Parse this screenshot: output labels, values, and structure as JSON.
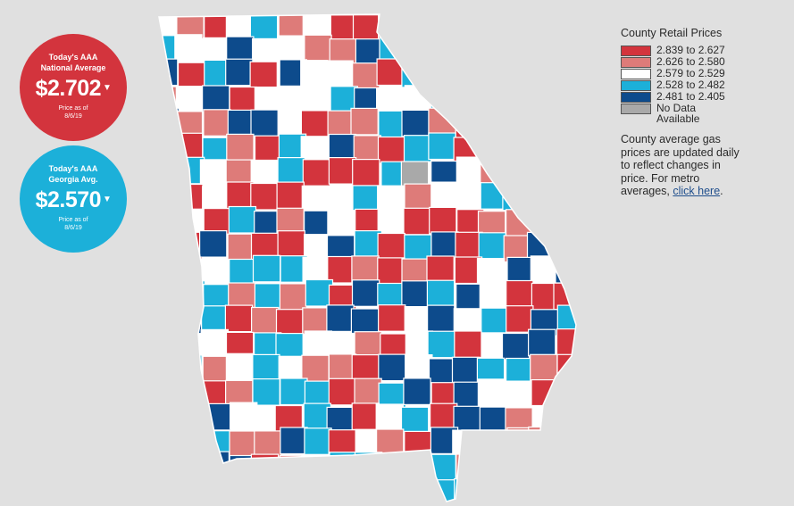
{
  "national": {
    "label_line1": "Today's AAA",
    "label_line2": "National Average",
    "price": "$2.702",
    "caret": "▼",
    "date_line1": "Price as of",
    "date_line2": "8/6/19",
    "color": "#d3343d"
  },
  "georgia": {
    "label_line1": "Today's AAA",
    "label_line2": "Georgia Avg.",
    "price": "$2.570",
    "caret": "▼",
    "date_line1": "Price as of",
    "date_line2": "8/6/19",
    "color": "#1cb0d9"
  },
  "legend": {
    "title": "County Retail Prices",
    "items": [
      {
        "range": "2.839 to 2.627",
        "color": "#d3343d"
      },
      {
        "range": "2.626 to 2.580",
        "color": "#de7b79"
      },
      {
        "range": "2.579 to 2.529",
        "color": "#ffffff"
      },
      {
        "range": "2.528 to 2.482",
        "color": "#1cb0d9"
      },
      {
        "range": "2.481 to 2.405",
        "color": "#0d4b8c"
      },
      {
        "range": "No Data Available",
        "color": "#a9a9a9"
      }
    ]
  },
  "note": {
    "text": "County average gas prices are updated daily to reflect changes in price. For metro averages, ",
    "link_text": "click here",
    "end": "."
  }
}
